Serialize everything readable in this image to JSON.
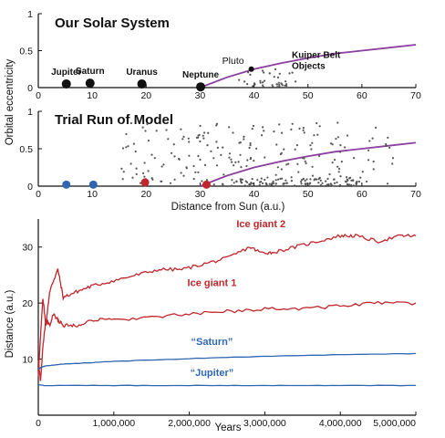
{
  "colors": {
    "purple": "#8b3f9e",
    "red": "#c0262b",
    "blue": "#2f66b4",
    "gray": "#555555",
    "black": "#111111"
  },
  "chart_data": [
    {
      "type": "scatter",
      "title": "Our Solar System",
      "xlabel": "",
      "ylabel": "Orbital eccentricity",
      "xlim": [
        0,
        70
      ],
      "ylim": [
        0,
        1
      ],
      "xticks": [
        "0",
        "10",
        "20",
        "30",
        "40",
        "50",
        "60",
        "70"
      ],
      "yticks": [
        "0",
        "0.5",
        "1"
      ],
      "planets": [
        {
          "name": "Jupiter",
          "x": 5.2,
          "y": 0.05
        },
        {
          "name": "Saturn",
          "x": 9.6,
          "y": 0.06
        },
        {
          "name": "Uranus",
          "x": 19.2,
          "y": 0.05
        },
        {
          "name": "Neptune",
          "x": 30.1,
          "y": 0.01
        }
      ],
      "pluto": {
        "name": "Pluto",
        "x": 39.5,
        "y": 0.25
      },
      "belt_label": "Kuiper Belt Objects",
      "belt_label_lines": [
        "Kuiper Belt",
        "Objects"
      ],
      "curve": [
        [
          30,
          0
        ],
        [
          35,
          0.14
        ],
        [
          40,
          0.25
        ],
        [
          45,
          0.33
        ],
        [
          50,
          0.4
        ],
        [
          55,
          0.46
        ],
        [
          60,
          0.5
        ],
        [
          65,
          0.54
        ],
        [
          70,
          0.58
        ]
      ]
    },
    {
      "type": "scatter",
      "title": "Trial Run of Model",
      "xlabel": "Distance from Sun (a.u.)",
      "ylabel": "Orbital eccentricity",
      "xlim": [
        0,
        70
      ],
      "ylim": [
        0,
        1
      ],
      "xticks": [
        "0",
        "10",
        "20",
        "30",
        "40",
        "50",
        "60",
        "70"
      ],
      "yticks": [
        "0",
        "0.5",
        "1"
      ],
      "planets": [
        {
          "x": 5.2,
          "y": 0.02,
          "color": "blue"
        },
        {
          "x": 10.2,
          "y": 0.02,
          "color": "blue"
        },
        {
          "x": 19.8,
          "y": 0.05,
          "color": "red"
        },
        {
          "x": 31.2,
          "y": 0.02,
          "color": "red"
        }
      ],
      "curve": [
        [
          30,
          0
        ],
        [
          35,
          0.14
        ],
        [
          40,
          0.25
        ],
        [
          45,
          0.33
        ],
        [
          50,
          0.4
        ],
        [
          55,
          0.46
        ],
        [
          60,
          0.5
        ],
        [
          65,
          0.54
        ],
        [
          70,
          0.58
        ]
      ]
    },
    {
      "type": "line",
      "title": "",
      "xlabel": "Years",
      "ylabel": "Distance (a.u.)",
      "xlim": [
        0,
        5000000
      ],
      "ylim": [
        0,
        35
      ],
      "xticks": [
        "0",
        "1,000,000",
        "2,000,000",
        "3,000,000",
        "4,000,000",
        "5,000,000"
      ],
      "yticks": [
        "10",
        "20",
        "30"
      ],
      "series": [
        {
          "name": "Ice giant 2",
          "color": "red",
          "x": [
            0,
            30000,
            60000,
            100000,
            150000,
            200000,
            260000,
            330000,
            500000,
            700000,
            1000000,
            1300000,
            1600000,
            1900000,
            2200000,
            2500000,
            2800000,
            2950000,
            3100000,
            3400000,
            3700000,
            4000000,
            4200000,
            4500000,
            4800000,
            5000000
          ],
          "values": [
            7,
            14,
            21,
            16,
            22,
            24,
            26,
            21,
            22,
            23,
            24,
            25,
            26,
            26,
            27,
            28,
            30,
            29,
            29,
            30,
            31,
            32,
            32,
            31,
            32,
            32
          ]
        },
        {
          "name": "Ice giant 1",
          "color": "red",
          "x": [
            0,
            30000,
            60000,
            100000,
            150000,
            200000,
            260000,
            330000,
            500000,
            700000,
            1000000,
            1500000,
            2000000,
            2500000,
            3000000,
            3500000,
            4000000,
            4500000,
            5000000
          ],
          "values": [
            10,
            6,
            12,
            17,
            16,
            18,
            17,
            16,
            16,
            17,
            17,
            17.5,
            18,
            18.5,
            19,
            19,
            19.5,
            20,
            20
          ]
        },
        {
          "name": "“Saturn”",
          "color": "blue",
          "x": [
            0,
            50000,
            100000,
            300000,
            600000,
            1000000,
            2000000,
            3000000,
            4000000,
            5000000
          ],
          "values": [
            8.2,
            8.6,
            8.8,
            9.1,
            9.3,
            9.6,
            10.1,
            10.5,
            10.8,
            11
          ]
        },
        {
          "name": "“Jupiter”",
          "color": "blue",
          "x": [
            0,
            100000,
            1000000,
            2000000,
            3000000,
            4000000,
            5000000
          ],
          "values": [
            5.4,
            5.3,
            5.3,
            5.3,
            5.3,
            5.3,
            5.3
          ]
        }
      ]
    }
  ]
}
